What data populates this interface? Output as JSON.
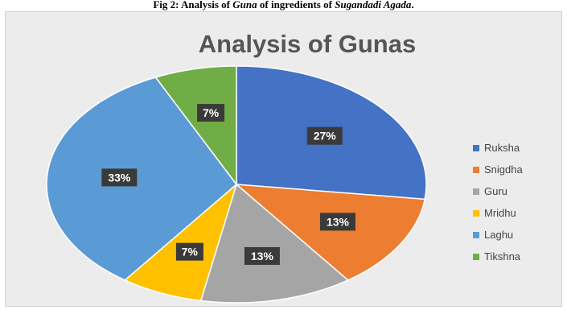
{
  "caption": {
    "prefix": "Fig 2: Analysis  of  ",
    "italic_word": "Guna",
    "middle": "  of  ingredients  of ",
    "italic_name": "Sugandadi Agada",
    "suffix": "."
  },
  "colors": {
    "background": "#ececec",
    "slice_label_bg": "#3a3a3a",
    "slice_label_text": "#ffffff"
  },
  "chart_data": {
    "type": "pie",
    "title": "Analysis of Gunas",
    "legend_position": "right",
    "slices": [
      {
        "label": "Ruksha",
        "value": 27,
        "display": "27%",
        "color": "#4472c4"
      },
      {
        "label": "Snigdha",
        "value": 13,
        "display": "13%",
        "color": "#ed7d31"
      },
      {
        "label": "Guru",
        "value": 13,
        "display": "13%",
        "color": "#a5a5a5"
      },
      {
        "label": "Mridhu",
        "value": 7,
        "display": "7%",
        "color": "#ffc000"
      },
      {
        "label": "Laghu",
        "value": 33,
        "display": "33%",
        "color": "#5b9bd5"
      },
      {
        "label": "Tikshna",
        "value": 7,
        "display": "7%",
        "color": "#70ad47"
      }
    ]
  }
}
